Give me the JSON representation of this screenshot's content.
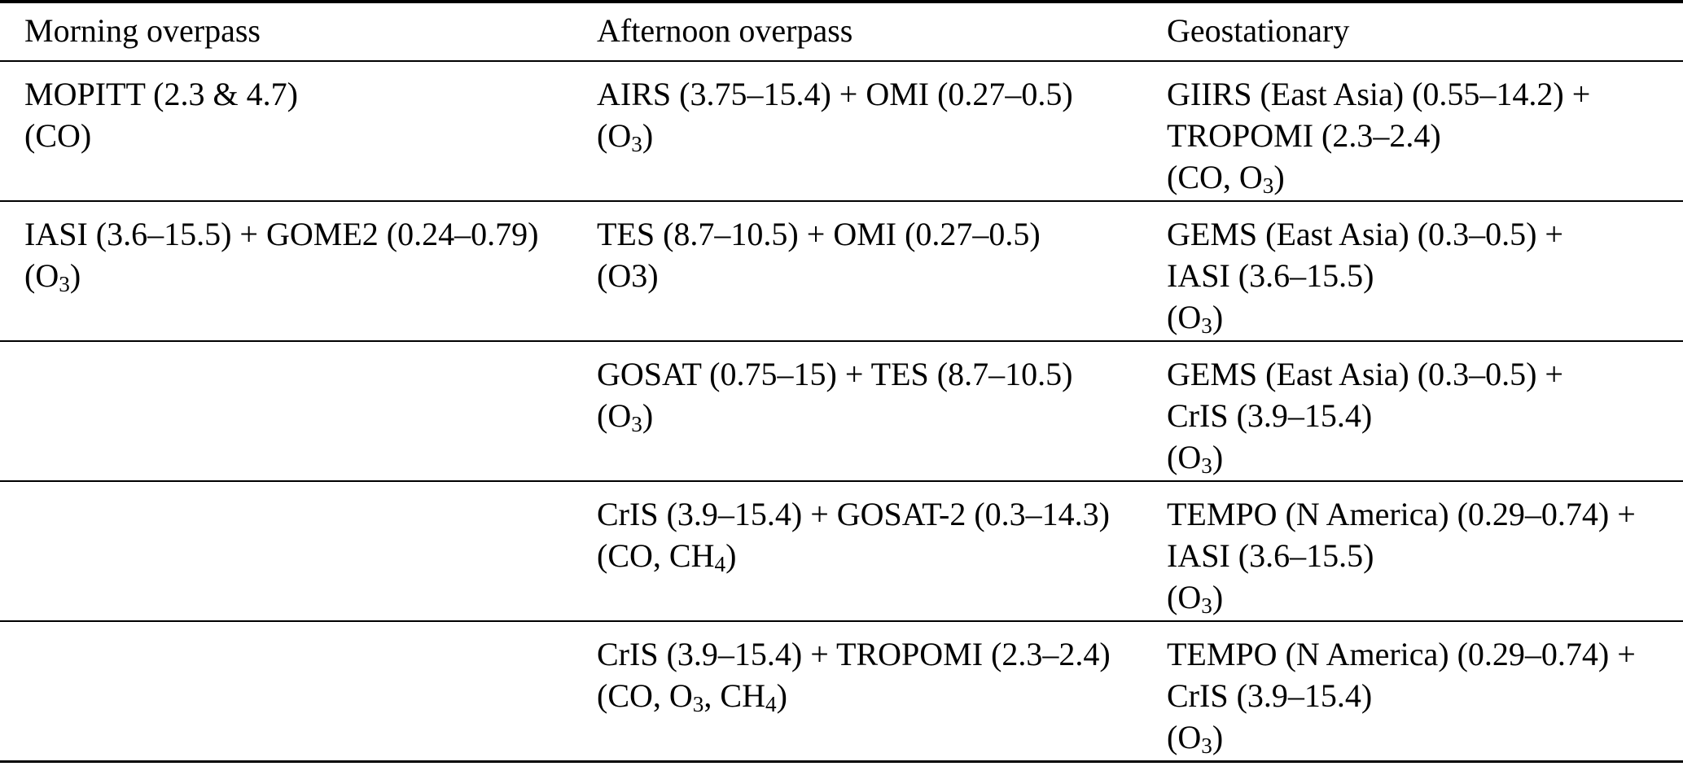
{
  "page": {
    "background": "#ffffff",
    "text_color": "#000000",
    "rule_color": "#000000"
  },
  "table": {
    "columns": [
      {
        "label": "Morning overpass"
      },
      {
        "label": "Afternoon overpass"
      },
      {
        "label": "Geostationary"
      }
    ],
    "rows": [
      {
        "morning": [
          "MOPITT (2.3 & 4.7)",
          "(CO)"
        ],
        "afternoon": [
          "AIRS (3.75–15.4) + OMI (0.27–0.5)",
          "(O₃)"
        ],
        "geostationary": [
          "GIIRS (East Asia) (0.55–14.2) +",
          "TROPOMI (2.3–2.4)",
          "(CO, O₃)"
        ]
      },
      {
        "morning": [
          "IASI (3.6–15.5) + GOME2 (0.24–0.79)",
          "(O₃)"
        ],
        "afternoon": [
          "TES (8.7–10.5) + OMI (0.27–0.5)",
          "(O3)"
        ],
        "geostationary": [
          "GEMS (East Asia) (0.3–0.5) +",
          "IASI (3.6–15.5)",
          "(O₃)"
        ]
      },
      {
        "morning": [],
        "afternoon": [
          "GOSAT (0.75–15) + TES (8.7–10.5)",
          "(O₃)"
        ],
        "geostationary": [
          "GEMS (East Asia) (0.3–0.5) +",
          "CrIS (3.9–15.4)",
          "(O₃)"
        ]
      },
      {
        "morning": [],
        "afternoon": [
          "CrIS (3.9–15.4) + GOSAT-2 (0.3–14.3)",
          "(CO, CH₄)"
        ],
        "geostationary": [
          "TEMPO (N America) (0.29–0.74) +",
          "IASI (3.6–15.5)",
          "(O₃)"
        ]
      },
      {
        "morning": [],
        "afternoon": [
          "CrIS (3.9–15.4) + TROPOMI (2.3–2.4)",
          "(CO, O₃, CH₄)"
        ],
        "geostationary": [
          "TEMPO (N America) (0.29–0.74) +",
          "CrIS (3.9–15.4)",
          "(O₃)"
        ]
      }
    ]
  }
}
